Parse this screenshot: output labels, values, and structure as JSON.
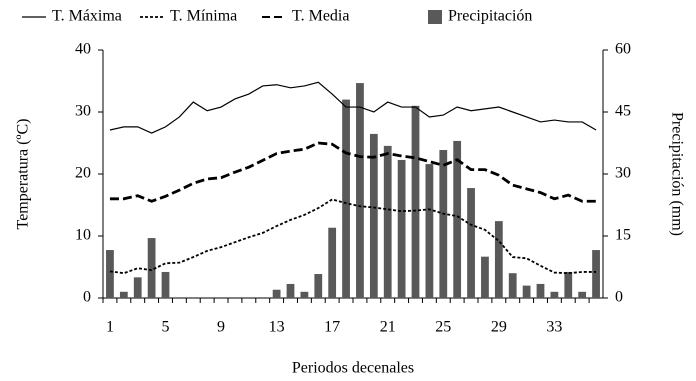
{
  "chart_data": {
    "type": "combo",
    "categories": [
      "1",
      null,
      null,
      null,
      "5",
      null,
      null,
      null,
      "9",
      null,
      null,
      null,
      "13",
      null,
      null,
      null,
      "17",
      null,
      null,
      null,
      "21",
      null,
      null,
      null,
      "25",
      null,
      null,
      null,
      "29",
      null,
      null,
      null,
      "33",
      null,
      null,
      null
    ],
    "x_label": "Periodos decenales",
    "y_label": "Temperatura (ºC)",
    "y2_label": "Precipitación (mm)",
    "ylim": [
      0,
      40
    ],
    "yticks": [
      0,
      10,
      20,
      30,
      40
    ],
    "y2lim": [
      0,
      60
    ],
    "y2ticks": [
      0,
      15,
      30,
      45,
      60
    ],
    "series": [
      {
        "name": "T. Máxima",
        "type": "line",
        "line_style": "solid",
        "color": "#000000",
        "values": [
          27.1,
          27.6,
          27.6,
          26.6,
          27.6,
          29.2,
          31.6,
          30.2,
          30.8,
          32.1,
          32.9,
          34.2,
          34.4,
          33.9,
          34.2,
          34.8,
          32.9,
          30.8,
          30.8,
          30.0,
          31.6,
          30.8,
          30.8,
          29.2,
          29.5,
          30.8,
          30.2,
          30.5,
          30.8,
          30.0,
          29.2,
          28.4,
          28.7,
          28.4,
          28.4,
          27.1
        ]
      },
      {
        "name": "T. Mínima",
        "type": "line",
        "line_style": "dotted",
        "color": "#000000",
        "values": [
          4.3,
          4.0,
          4.8,
          4.5,
          5.6,
          5.7,
          6.6,
          7.6,
          8.2,
          9.0,
          9.8,
          10.5,
          11.6,
          12.6,
          13.4,
          14.5,
          15.9,
          15.3,
          14.8,
          14.6,
          14.3,
          14.0,
          14.1,
          14.3,
          13.6,
          13.2,
          11.8,
          11.0,
          9.2,
          6.6,
          6.4,
          5.2,
          4.1,
          4.0,
          4.2,
          4.2
        ]
      },
      {
        "name": "T. Media",
        "type": "line",
        "line_style": "dashed",
        "color": "#000000",
        "values": [
          16.0,
          16.0,
          16.5,
          15.6,
          16.4,
          17.4,
          18.5,
          19.2,
          19.4,
          20.3,
          21.1,
          22.2,
          23.3,
          23.7,
          24.0,
          25.0,
          24.8,
          23.4,
          22.8,
          22.7,
          23.3,
          22.9,
          22.6,
          22.0,
          21.4,
          22.3,
          20.7,
          20.7,
          19.8,
          18.2,
          17.6,
          17.0,
          16.0,
          16.6,
          15.6,
          15.6
        ]
      },
      {
        "name": "Precipitación",
        "type": "bar",
        "axis": "y2",
        "color": "#595959",
        "values": [
          11.6,
          1.5,
          5.0,
          14.5,
          6.3,
          0,
          0,
          0,
          0,
          0,
          0,
          0,
          2.0,
          3.4,
          1.5,
          5.8,
          17.0,
          48.0,
          52.0,
          39.7,
          36.8,
          33.4,
          46.5,
          32.4,
          35.8,
          38.0,
          26.6,
          10.0,
          18.6,
          6.0,
          3.0,
          3.4,
          1.5,
          6.3,
          1.5,
          11.6
        ]
      }
    ]
  }
}
